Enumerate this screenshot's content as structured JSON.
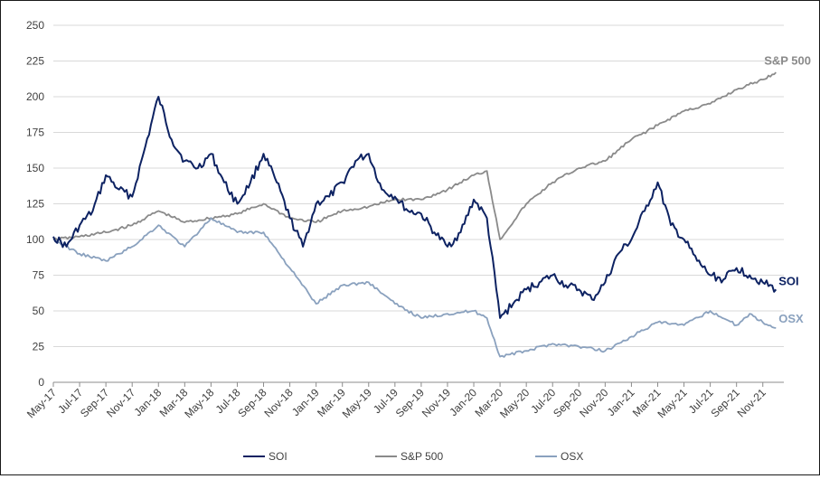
{
  "chart_data": {
    "type": "line",
    "title": "",
    "xlabel": "",
    "ylabel": "",
    "ylim": [
      0,
      250
    ],
    "yticks": [
      0,
      25,
      50,
      75,
      100,
      125,
      150,
      175,
      200,
      225,
      250
    ],
    "x_tick_labels": [
      "May-17",
      "Jul-17",
      "Sep-17",
      "Nov-17",
      "Jan-18",
      "Mar-18",
      "May-18",
      "Jul-18",
      "Sep-18",
      "Nov-18",
      "Jan-19",
      "Mar-19",
      "May-19",
      "Jul-19",
      "Sep-19",
      "Nov-19",
      "Jan-20",
      "Mar-20",
      "May-20",
      "Jul-20",
      "Sep-20",
      "Nov-20",
      "Jan-21",
      "Mar-21",
      "May-21",
      "Jul-21",
      "Sep-21",
      "Nov-21"
    ],
    "grid": "horizontal",
    "legend_position": "bottom",
    "series": [
      {
        "name": "SOI",
        "color": "#0d2262",
        "end_label": "SOI",
        "points": [
          [
            "May-17",
            102
          ],
          [
            "Jun-17",
            95
          ],
          [
            "Jul-17",
            110
          ],
          [
            "Aug-17",
            120
          ],
          [
            "Sep-17",
            145
          ],
          [
            "Oct-17",
            135
          ],
          [
            "Nov-17",
            130
          ],
          [
            "Dec-17",
            165
          ],
          [
            "Jan-18",
            200
          ],
          [
            "Feb-18",
            170
          ],
          [
            "Mar-18",
            155
          ],
          [
            "Apr-18",
            150
          ],
          [
            "May-18",
            160
          ],
          [
            "Jun-18",
            140
          ],
          [
            "Jul-18",
            125
          ],
          [
            "Aug-18",
            140
          ],
          [
            "Sep-18",
            160
          ],
          [
            "Oct-18",
            140
          ],
          [
            "Nov-18",
            115
          ],
          [
            "Dec-18",
            95
          ],
          [
            "Jan-19",
            125
          ],
          [
            "Feb-19",
            130
          ],
          [
            "Mar-19",
            140
          ],
          [
            "Apr-19",
            155
          ],
          [
            "May-19",
            160
          ],
          [
            "Jun-19",
            135
          ],
          [
            "Jul-19",
            130
          ],
          [
            "Aug-19",
            120
          ],
          [
            "Sep-19",
            118
          ],
          [
            "Oct-19",
            105
          ],
          [
            "Nov-19",
            95
          ],
          [
            "Dec-19",
            105
          ],
          [
            "Jan-20",
            128
          ],
          [
            "Feb-20",
            115
          ],
          [
            "Mar-20",
            45
          ],
          [
            "Apr-20",
            55
          ],
          [
            "May-20",
            65
          ],
          [
            "Jun-20",
            70
          ],
          [
            "Jul-20",
            75
          ],
          [
            "Aug-20",
            68
          ],
          [
            "Sep-20",
            65
          ],
          [
            "Oct-20",
            58
          ],
          [
            "Nov-20",
            70
          ],
          [
            "Dec-20",
            90
          ],
          [
            "Jan-21",
            100
          ],
          [
            "Feb-21",
            120
          ],
          [
            "Mar-21",
            140
          ],
          [
            "Apr-21",
            110
          ],
          [
            "May-21",
            100
          ],
          [
            "Jun-21",
            85
          ],
          [
            "Jul-21",
            75
          ],
          [
            "Aug-21",
            72
          ],
          [
            "Sep-21",
            80
          ],
          [
            "Oct-21",
            75
          ],
          [
            "Nov-21",
            70
          ],
          [
            "Dec-21",
            65
          ]
        ]
      },
      {
        "name": "S&P 500",
        "color": "#8a8a8a",
        "end_label": "S&P 500",
        "points": [
          [
            "May-17",
            100
          ],
          [
            "Jul-17",
            102
          ],
          [
            "Sep-17",
            105
          ],
          [
            "Nov-17",
            110
          ],
          [
            "Jan-18",
            120
          ],
          [
            "Mar-18",
            112
          ],
          [
            "May-18",
            115
          ],
          [
            "Jul-18",
            118
          ],
          [
            "Sep-18",
            125
          ],
          [
            "Nov-18",
            115
          ],
          [
            "Jan-19",
            112
          ],
          [
            "Mar-19",
            120
          ],
          [
            "May-19",
            123
          ],
          [
            "Jul-19",
            128
          ],
          [
            "Sep-19",
            128
          ],
          [
            "Nov-19",
            135
          ],
          [
            "Jan-20",
            145
          ],
          [
            "Feb-20",
            148
          ],
          [
            "Mar-20",
            100
          ],
          [
            "May-20",
            125
          ],
          [
            "Jul-20",
            140
          ],
          [
            "Sep-20",
            150
          ],
          [
            "Nov-20",
            155
          ],
          [
            "Jan-21",
            170
          ],
          [
            "Mar-21",
            180
          ],
          [
            "May-21",
            190
          ],
          [
            "Jul-21",
            195
          ],
          [
            "Sep-21",
            205
          ],
          [
            "Nov-21",
            212
          ],
          [
            "Dec-21",
            217
          ]
        ]
      },
      {
        "name": "OSX",
        "color": "#8aa1be",
        "end_label": "OSX",
        "points": [
          [
            "May-17",
            100
          ],
          [
            "Jul-17",
            90
          ],
          [
            "Sep-17",
            85
          ],
          [
            "Nov-17",
            95
          ],
          [
            "Jan-18",
            110
          ],
          [
            "Mar-18",
            95
          ],
          [
            "May-18",
            115
          ],
          [
            "Jul-18",
            105
          ],
          [
            "Sep-18",
            105
          ],
          [
            "Nov-18",
            80
          ],
          [
            "Jan-19",
            55
          ],
          [
            "Mar-19",
            68
          ],
          [
            "May-19",
            70
          ],
          [
            "Jul-19",
            55
          ],
          [
            "Sep-19",
            45
          ],
          [
            "Nov-19",
            48
          ],
          [
            "Jan-20",
            50
          ],
          [
            "Feb-20",
            45
          ],
          [
            "Mar-20",
            18
          ],
          [
            "May-20",
            22
          ],
          [
            "Jul-20",
            27
          ],
          [
            "Sep-20",
            25
          ],
          [
            "Nov-20",
            22
          ],
          [
            "Jan-21",
            32
          ],
          [
            "Mar-21",
            42
          ],
          [
            "May-21",
            40
          ],
          [
            "Jul-21",
            50
          ],
          [
            "Sep-21",
            40
          ],
          [
            "Oct-21",
            48
          ],
          [
            "Nov-21",
            42
          ],
          [
            "Dec-21",
            38
          ]
        ]
      }
    ]
  }
}
